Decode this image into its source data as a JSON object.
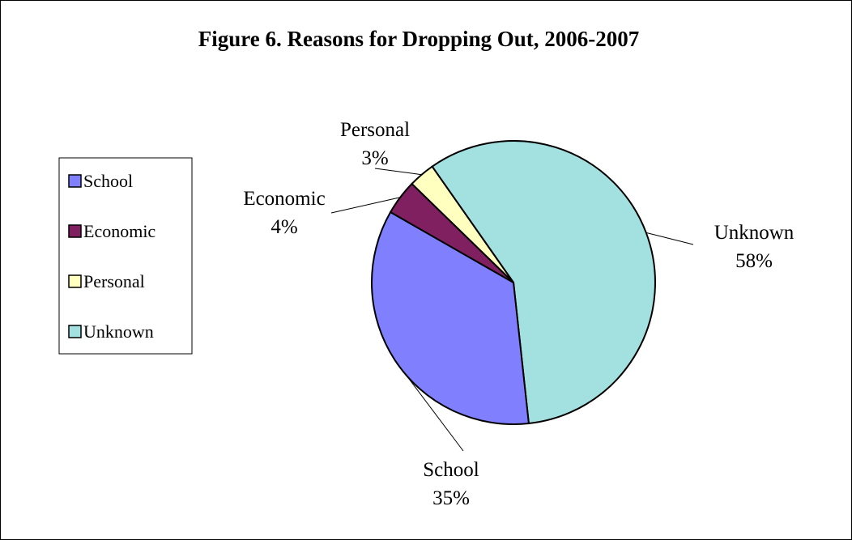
{
  "chart_data": {
    "type": "pie",
    "title": "Figure 6.  Reasons for Dropping Out, 2006-2007",
    "slices": [
      {
        "label": "Unknown",
        "value": 58,
        "value_label": "58%",
        "color": "#a3e0e0"
      },
      {
        "label": "School",
        "value": 35,
        "value_label": "35%",
        "color": "#8080ff"
      },
      {
        "label": "Economic",
        "value": 4,
        "value_label": "4%",
        "color": "#802060"
      },
      {
        "label": "Personal",
        "value": 3,
        "value_label": "3%",
        "color": "#ffffc0"
      }
    ],
    "legend": {
      "placement": "left",
      "items": [
        "School",
        "Economic",
        "Personal",
        "Unknown"
      ]
    }
  }
}
